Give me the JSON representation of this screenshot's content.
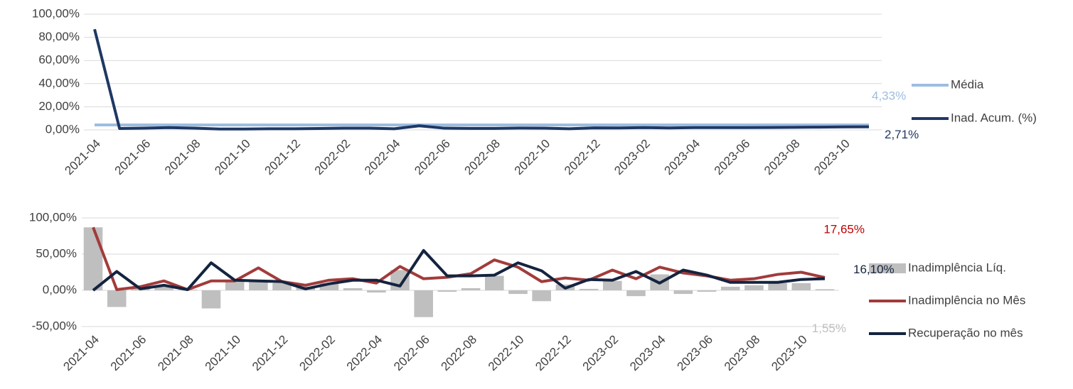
{
  "chart_data": [
    {
      "type": "line",
      "categories": [
        "2021-04",
        null,
        "2021-06",
        null,
        "2021-08",
        null,
        "2021-10",
        null,
        "2021-12",
        null,
        "2022-02",
        null,
        "2022-04",
        null,
        "2022-06",
        null,
        "2022-08",
        null,
        "2022-10",
        null,
        "2022-12",
        null,
        "2023-02",
        null,
        "2023-04",
        null,
        "2023-06",
        null,
        "2023-08",
        null,
        "2023-10",
        null
      ],
      "ylim": [
        0,
        100
      ],
      "yticks": [
        {
          "value": 0,
          "label": "0,00%"
        },
        {
          "value": 20,
          "label": "20,00%"
        },
        {
          "value": 40,
          "label": "40,00%"
        },
        {
          "value": 60,
          "label": "60,00%"
        },
        {
          "value": 80,
          "label": "80,00%"
        },
        {
          "value": 100,
          "label": "100,00%"
        }
      ],
      "grid": true,
      "legend": "right",
      "series": [
        {
          "name": "Média",
          "type": "line",
          "color": "#9dbde0",
          "values": [
            4.33,
            4.33,
            4.33,
            4.33,
            4.33,
            4.33,
            4.33,
            4.33,
            4.33,
            4.33,
            4.33,
            4.33,
            4.33,
            4.33,
            4.33,
            4.33,
            4.33,
            4.33,
            4.33,
            4.33,
            4.33,
            4.33,
            4.33,
            4.33,
            4.33,
            4.33,
            4.33,
            4.33,
            4.33,
            4.33,
            4.33,
            4.33
          ],
          "value_labels": [
            null,
            null,
            null,
            null,
            null,
            null,
            null,
            null,
            null,
            null,
            null,
            null,
            null,
            null,
            null,
            null,
            null,
            null,
            null,
            null,
            null,
            null,
            null,
            null,
            null,
            null,
            null,
            null,
            null,
            null,
            null,
            "4,33%"
          ]
        },
        {
          "name": "Inad. Acum. (%)",
          "type": "line",
          "color": "#1f3864",
          "values": [
            87,
            1.2,
            1.5,
            2,
            1.5,
            0.8,
            0.8,
            1,
            1,
            1.2,
            1.5,
            1.5,
            1,
            3.5,
            1.5,
            1.3,
            1.3,
            1.6,
            1.5,
            1,
            1.8,
            1.7,
            2,
            1.7,
            2,
            2,
            2,
            2.1,
            2.2,
            2.4,
            2.6,
            2.71
          ],
          "value_labels": [
            null,
            null,
            null,
            null,
            null,
            null,
            null,
            null,
            null,
            null,
            null,
            null,
            null,
            null,
            null,
            null,
            null,
            null,
            null,
            null,
            null,
            null,
            null,
            null,
            null,
            null,
            null,
            null,
            null,
            null,
            null,
            "2,71%"
          ]
        }
      ]
    },
    {
      "type": "combo",
      "categories": [
        "2021-04",
        null,
        "2021-06",
        null,
        "2021-08",
        null,
        "2021-10",
        null,
        "2021-12",
        null,
        "2022-02",
        null,
        "2022-04",
        null,
        "2022-06",
        null,
        "2022-08",
        null,
        "2022-10",
        null,
        "2022-12",
        null,
        "2023-02",
        null,
        "2023-04",
        null,
        "2023-06",
        null,
        "2023-08",
        null,
        "2023-10",
        null
      ],
      "ylim": [
        -50,
        100
      ],
      "yticks": [
        {
          "value": -50,
          "label": "-50,00%"
        },
        {
          "value": 0,
          "label": "0,00%"
        },
        {
          "value": 50,
          "label": "50,00%"
        },
        {
          "value": 100,
          "label": "100,00%"
        }
      ],
      "grid": true,
      "legend": "right",
      "series": [
        {
          "name": "Inadimplência Líq.",
          "type": "bar",
          "color": "#bfbfbf",
          "values": [
            87,
            -23,
            3,
            5,
            1,
            -25,
            13,
            13,
            10,
            5,
            10,
            3,
            -3,
            28,
            -37,
            -2,
            3,
            20,
            -5,
            -15,
            8,
            2,
            13,
            -8,
            22,
            -5,
            -2,
            5,
            7,
            10,
            10,
            1.55
          ],
          "value_labels": [
            null,
            null,
            null,
            null,
            null,
            null,
            null,
            null,
            null,
            null,
            null,
            null,
            null,
            null,
            null,
            null,
            null,
            null,
            null,
            null,
            null,
            null,
            null,
            null,
            null,
            null,
            null,
            null,
            null,
            null,
            null,
            "1,55%"
          ]
        },
        {
          "name": "Inadimplência no Mês",
          "type": "line",
          "color": "#a23b3b",
          "values": [
            87,
            1,
            5,
            13,
            1,
            13,
            13,
            31,
            12,
            7,
            14,
            16,
            10,
            33,
            16,
            18,
            23,
            42,
            32,
            12,
            17,
            14,
            28,
            16,
            32,
            24,
            20,
            14,
            16,
            22,
            25,
            17.65
          ],
          "value_labels": [
            null,
            null,
            null,
            null,
            null,
            null,
            null,
            null,
            null,
            null,
            null,
            null,
            null,
            null,
            null,
            null,
            null,
            null,
            null,
            null,
            null,
            null,
            null,
            null,
            null,
            null,
            null,
            null,
            null,
            null,
            null,
            "17,65%"
          ]
        },
        {
          "name": "Recuperação no mês",
          "type": "line",
          "color": "#14233f",
          "values": [
            0,
            26,
            2,
            7,
            1,
            38,
            14,
            13,
            12,
            2,
            9,
            14,
            14,
            6,
            55,
            20,
            20,
            21,
            38,
            27,
            3,
            15,
            14,
            26,
            10,
            28,
            21,
            11,
            11,
            11,
            15,
            16.1
          ],
          "value_labels": [
            null,
            null,
            null,
            null,
            null,
            null,
            null,
            null,
            null,
            null,
            null,
            null,
            null,
            null,
            null,
            null,
            null,
            null,
            null,
            null,
            null,
            null,
            null,
            null,
            null,
            null,
            null,
            null,
            null,
            null,
            null,
            "16,10%"
          ]
        }
      ]
    }
  ]
}
